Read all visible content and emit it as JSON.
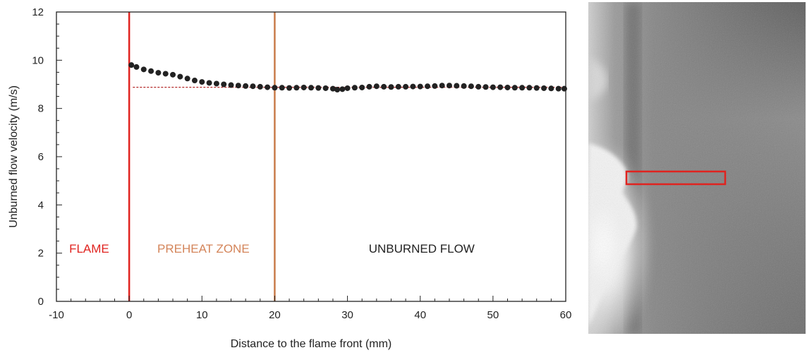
{
  "chart_data": {
    "type": "scatter",
    "xlabel": "Distance to the flame front (mm)",
    "ylabel": "Unburned flow velocity (m/s)",
    "xlim": [
      -10,
      60
    ],
    "ylim": [
      0,
      12
    ],
    "x_ticks": [
      -10,
      0,
      10,
      20,
      30,
      40,
      50,
      60
    ],
    "y_ticks": [
      0,
      2,
      4,
      6,
      8,
      10,
      12
    ],
    "x_tick_labels": [
      "-10",
      "0",
      "10",
      "20",
      "30",
      "40",
      "50",
      "60"
    ],
    "y_tick_labels": [
      "0",
      "2",
      "4",
      "6",
      "8",
      "10",
      "12"
    ],
    "grid": false,
    "series": [
      {
        "color": "#222222",
        "marker": "circle",
        "points": [
          [
            0.3,
            9.8
          ],
          [
            1.0,
            9.72
          ],
          [
            2.0,
            9.62
          ],
          [
            3.0,
            9.55
          ],
          [
            4.0,
            9.48
          ],
          [
            5.0,
            9.44
          ],
          [
            6.0,
            9.4
          ],
          [
            7.0,
            9.32
          ],
          [
            8.0,
            9.24
          ],
          [
            9.0,
            9.16
          ],
          [
            10.0,
            9.1
          ],
          [
            11.0,
            9.06
          ],
          [
            12.0,
            9.03
          ],
          [
            13.0,
            9.0
          ],
          [
            14.0,
            8.97
          ],
          [
            15.0,
            8.95
          ],
          [
            16.0,
            8.93
          ],
          [
            17.0,
            8.92
          ],
          [
            18.0,
            8.9
          ],
          [
            19.0,
            8.88
          ],
          [
            20.0,
            8.86
          ],
          [
            21.0,
            8.86
          ],
          [
            22.0,
            8.85
          ],
          [
            23.0,
            8.86
          ],
          [
            24.0,
            8.87
          ],
          [
            25.0,
            8.86
          ],
          [
            26.0,
            8.85
          ],
          [
            27.0,
            8.84
          ],
          [
            28.0,
            8.82
          ],
          [
            28.6,
            8.78
          ],
          [
            29.3,
            8.8
          ],
          [
            30.0,
            8.84
          ],
          [
            31.0,
            8.86
          ],
          [
            32.0,
            8.87
          ],
          [
            33.0,
            8.9
          ],
          [
            34.0,
            8.92
          ],
          [
            35.0,
            8.9
          ],
          [
            36.0,
            8.89
          ],
          [
            37.0,
            8.9
          ],
          [
            38.0,
            8.9
          ],
          [
            39.0,
            8.91
          ],
          [
            40.0,
            8.91
          ],
          [
            41.0,
            8.92
          ],
          [
            42.0,
            8.93
          ],
          [
            43.0,
            8.95
          ],
          [
            44.0,
            8.95
          ],
          [
            45.0,
            8.94
          ],
          [
            46.0,
            8.93
          ],
          [
            47.0,
            8.92
          ],
          [
            48.0,
            8.9
          ],
          [
            49.0,
            8.89
          ],
          [
            50.0,
            8.88
          ],
          [
            51.0,
            8.88
          ],
          [
            52.0,
            8.87
          ],
          [
            53.0,
            8.86
          ],
          [
            54.0,
            8.86
          ],
          [
            55.0,
            8.86
          ],
          [
            56.0,
            8.85
          ],
          [
            57.0,
            8.84
          ],
          [
            58.0,
            8.83
          ],
          [
            59.0,
            8.82
          ],
          [
            59.8,
            8.82
          ]
        ]
      }
    ],
    "reference_line": {
      "y": 8.88,
      "x_start": 0.5,
      "x_end": 60,
      "style": "dashed",
      "color": "#b52a2a"
    },
    "vertical_lines": [
      {
        "x": 0,
        "color": "#e0231f"
      },
      {
        "x": 20,
        "color": "#c97b4a"
      }
    ],
    "annotations": [
      {
        "text": "FLAME",
        "x": -5.5,
        "y": 2.2,
        "color": "#e0231f"
      },
      {
        "text": "PREHEAT ZONE",
        "x": 10.2,
        "y": 2.2,
        "color": "#d4855a"
      },
      {
        "text": "UNBURNED FLOW",
        "x": 40.2,
        "y": 2.2,
        "color": "#222222"
      }
    ]
  },
  "photo": {
    "highlight_box_color": "#e0231f"
  }
}
